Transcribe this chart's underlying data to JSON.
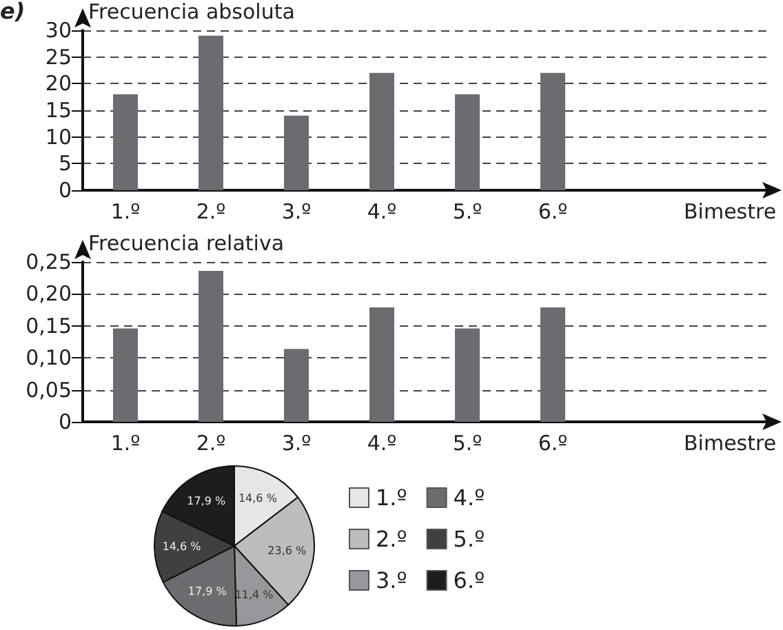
{
  "chart_data": [
    {
      "type": "bar",
      "annotations": [
        "e)"
      ],
      "ylabel": "Frecuencia absoluta",
      "xlabel": "Bimestre",
      "categories": [
        "1.º",
        "2.º",
        "3.º",
        "4.º",
        "5.º",
        "6.º"
      ],
      "values": [
        18,
        29,
        14,
        22,
        18,
        22
      ],
      "color": "#6b6c6f",
      "ylim": [
        0,
        30
      ],
      "yticks": [
        0,
        5,
        10,
        15,
        20,
        25,
        30
      ],
      "grid": "y"
    },
    {
      "type": "bar",
      "ylabel": "Frecuencia relativa",
      "xlabel": "Bimestre",
      "categories": [
        "1.º",
        "2.º",
        "3.º",
        "4.º",
        "5.º",
        "6.º"
      ],
      "values": [
        0.146,
        0.236,
        0.114,
        0.179,
        0.146,
        0.179
      ],
      "color": "#6b6c6f",
      "ylim": [
        0,
        0.25
      ],
      "yticks": [
        {
          "value": 0,
          "label": "0"
        },
        {
          "value": 0.05,
          "label": "0,05"
        },
        {
          "value": 0.1,
          "label": "0,10"
        },
        {
          "value": 0.15,
          "label": "0,15"
        },
        {
          "value": 0.2,
          "label": "0,20"
        },
        {
          "value": 0.25,
          "label": "0,25"
        }
      ],
      "grid": "y"
    },
    {
      "type": "pie",
      "categories": [
        "1.º",
        "2.º",
        "3.º",
        "4.º",
        "5.º",
        "6.º"
      ],
      "values": [
        14.6,
        23.6,
        11.4,
        17.9,
        14.6,
        17.9
      ],
      "colors": [
        "#e6e6e7",
        "#bcbdbf",
        "#97989b",
        "#6b6c6f",
        "#3f4042",
        "#1d1d1f"
      ],
      "value_labels": [
        "14,6 %",
        "23,6 %",
        "11,4 %",
        "17,9 %",
        "14,6 %",
        "17,9 %"
      ],
      "legend": "right"
    }
  ]
}
